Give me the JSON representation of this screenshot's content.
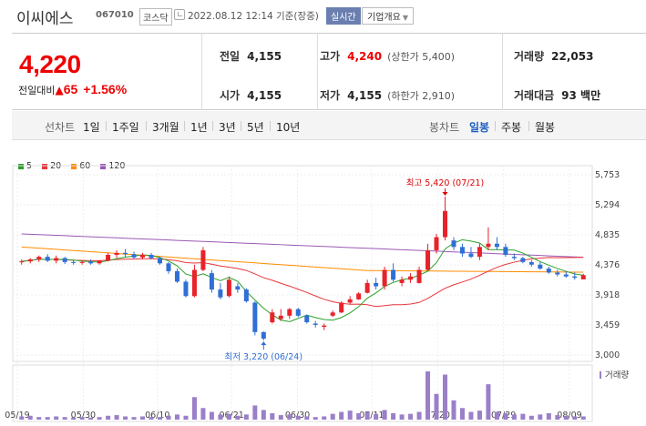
{
  "header": {
    "name": "이씨에스",
    "code": "067010",
    "market": "코스닥",
    "timestamp": "2022.08.12 12:14 기준(장중)",
    "realtime": "실시간",
    "company_info": "기업개요"
  },
  "quote": {
    "price": "4,220",
    "change_label": "전일대비",
    "change_arrow": "▲",
    "change": "65",
    "change_pct": "+1.56%",
    "prev_label": "전일",
    "prev": "4,155",
    "open_label": "시가",
    "open": "4,155",
    "high_label": "고가",
    "high": "4,240",
    "high_sub": "(상한가 5,400)",
    "low_label": "저가",
    "low": "4,155",
    "low_sub": "(하한가 2,910)",
    "volume_label": "거래량",
    "volume": "22,053",
    "amount_label": "거래대금",
    "amount": "93 백만"
  },
  "period": {
    "label": "선차트",
    "options": [
      "1일",
      "1주일",
      "3개월",
      "1년",
      "3년",
      "5년",
      "10년"
    ],
    "candle_label": "봉차트",
    "candle_options": [
      "일봉",
      "주봉",
      "월봉"
    ],
    "candle_active": "일봉"
  },
  "legend": [
    {
      "name": "5",
      "color": "#2ca02c"
    },
    {
      "name": "20",
      "color": "#e8363a"
    },
    {
      "name": "60",
      "color": "#ff8c00"
    },
    {
      "name": "120",
      "color": "#9b59b6"
    }
  ],
  "colors": {
    "up": "#e8222a",
    "down": "#2f6fd6",
    "volume": "#9b7fc8"
  },
  "chart_data": {
    "type": "candlestick",
    "y_ticks": [
      "5,753",
      "5,294",
      "4,835",
      "4,376",
      "3,918",
      "3,459",
      "3,000"
    ],
    "ylim": [
      3000,
      5753
    ],
    "x_ticks": [
      "05/19",
      "05/30",
      "06/10",
      "06/21",
      "06/30",
      "07/11",
      "07/20",
      "07/29",
      "08/09"
    ],
    "high_annotation": "최고 5,420 (07/21)",
    "low_annotation": "최저 3,220 (06/24)",
    "volume_label": "거래량",
    "candles": [
      [
        4420,
        4460,
        4380,
        4430
      ],
      [
        4430,
        4480,
        4400,
        4460
      ],
      [
        4460,
        4520,
        4420,
        4500
      ],
      [
        4500,
        4540,
        4420,
        4440
      ],
      [
        4440,
        4520,
        4400,
        4480
      ],
      [
        4480,
        4500,
        4390,
        4420
      ],
      [
        4420,
        4450,
        4380,
        4410
      ],
      [
        4410,
        4440,
        4380,
        4420
      ],
      [
        4420,
        4460,
        4380,
        4400
      ],
      [
        4400,
        4450,
        4380,
        4440
      ],
      [
        4440,
        4560,
        4430,
        4530
      ],
      [
        4530,
        4600,
        4480,
        4560
      ],
      [
        4560,
        4620,
        4500,
        4540
      ],
      [
        4540,
        4580,
        4470,
        4490
      ],
      [
        4490,
        4560,
        4460,
        4530
      ],
      [
        4530,
        4560,
        4460,
        4480
      ],
      [
        4480,
        4500,
        4380,
        4400
      ],
      [
        4400,
        4420,
        4240,
        4280
      ],
      [
        4280,
        4320,
        4100,
        4120
      ],
      [
        4120,
        4150,
        3880,
        3900
      ],
      [
        3900,
        4380,
        3880,
        4300
      ],
      [
        4300,
        4650,
        4280,
        4600
      ],
      [
        4250,
        4300,
        3950,
        4000
      ],
      [
        4000,
        4100,
        3850,
        3880
      ],
      [
        3900,
        4200,
        3880,
        4150
      ],
      [
        4050,
        4100,
        3950,
        4000
      ],
      [
        4000,
        4020,
        3800,
        3820
      ],
      [
        3800,
        3820,
        3300,
        3350
      ],
      [
        3350,
        3360,
        3220,
        3250
      ],
      [
        3500,
        3700,
        3480,
        3650
      ],
      [
        3550,
        3700,
        3520,
        3600
      ],
      [
        3600,
        3720,
        3550,
        3700
      ],
      [
        3700,
        3720,
        3580,
        3600
      ],
      [
        3600,
        3620,
        3480,
        3500
      ],
      [
        3480,
        3520,
        3420,
        3460
      ],
      [
        3430,
        3480,
        3380,
        3450
      ],
      [
        3600,
        3680,
        3580,
        3650
      ],
      [
        3650,
        3820,
        3640,
        3800
      ],
      [
        3800,
        3900,
        3780,
        3850
      ],
      [
        3850,
        3960,
        3840,
        3940
      ],
      [
        3950,
        4150,
        3940,
        4100
      ],
      [
        4100,
        4180,
        4000,
        4050
      ],
      [
        4050,
        4350,
        4000,
        4300
      ],
      [
        4300,
        4400,
        4120,
        4150
      ],
      [
        4100,
        4200,
        4050,
        4150
      ],
      [
        4150,
        4250,
        4100,
        4200
      ],
      [
        4100,
        4350,
        4090,
        4300
      ],
      [
        4300,
        4700,
        4280,
        4600
      ],
      [
        4600,
        4850,
        4550,
        4800
      ],
      [
        4800,
        5420,
        4750,
        5200
      ],
      [
        4750,
        4800,
        4600,
        4650
      ],
      [
        4650,
        4700,
        4500,
        4550
      ],
      [
        4550,
        4650,
        4480,
        4500
      ],
      [
        4500,
        4700,
        4450,
        4650
      ],
      [
        4650,
        4950,
        4600,
        4700
      ],
      [
        4700,
        4800,
        4600,
        4650
      ],
      [
        4650,
        4700,
        4500,
        4530
      ],
      [
        4500,
        4550,
        4450,
        4480
      ],
      [
        4480,
        4500,
        4400,
        4420
      ],
      [
        4420,
        4450,
        4350,
        4380
      ],
      [
        4380,
        4420,
        4300,
        4320
      ],
      [
        4320,
        4350,
        4240,
        4260
      ],
      [
        4260,
        4300,
        4200,
        4230
      ],
      [
        4230,
        4280,
        4180,
        4200
      ],
      [
        4200,
        4260,
        4150,
        4180
      ],
      [
        4155,
        4240,
        4155,
        4220
      ]
    ],
    "volumes": [
      5,
      6,
      4,
      4,
      5,
      4,
      3,
      4,
      3,
      4,
      6,
      7,
      5,
      4,
      5,
      4,
      4,
      6,
      8,
      6,
      35,
      18,
      12,
      8,
      9,
      6,
      8,
      22,
      15,
      10,
      7,
      8,
      6,
      5,
      4,
      5,
      9,
      12,
      14,
      10,
      12,
      9,
      15,
      10,
      8,
      9,
      12,
      75,
      40,
      70,
      30,
      18,
      12,
      14,
      55,
      12,
      10,
      8,
      9,
      6,
      8,
      10,
      7,
      6,
      5,
      5
    ]
  }
}
